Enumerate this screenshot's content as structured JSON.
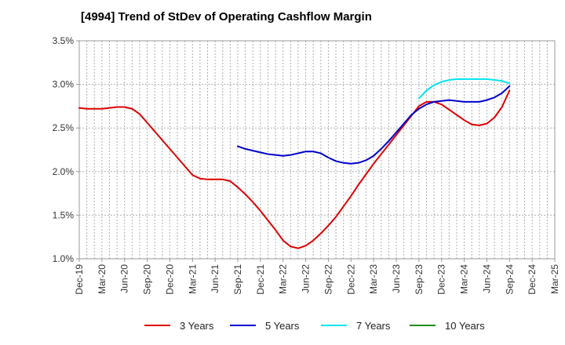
{
  "chart_data": {
    "type": "line",
    "title": "[4994]  Trend of StDev of Operating Cashflow Margin",
    "xlabel": "",
    "ylabel": "",
    "categories": [
      "Dec-19",
      "Mar-20",
      "Jun-20",
      "Sep-20",
      "Dec-20",
      "Mar-21",
      "Jun-21",
      "Sep-21",
      "Dec-21",
      "Mar-22",
      "Jun-22",
      "Sep-22",
      "Dec-22",
      "Mar-23",
      "Jun-23",
      "Sep-23",
      "Dec-23",
      "Mar-24",
      "Jun-24",
      "Sep-24",
      "Dec-24",
      "Mar-25"
    ],
    "y_ticks": [
      "1.0%",
      "1.5%",
      "2.0%",
      "2.5%",
      "3.0%",
      "3.5%"
    ],
    "ylim": [
      1.0,
      3.5
    ],
    "grid": true,
    "legend_position": "bottom",
    "series": [
      {
        "name": "3 Years",
        "color": "#dd0000",
        "points": [
          [
            "Dec-19",
            2.73
          ],
          [
            "Jan-20",
            2.72
          ],
          [
            "Feb-20",
            2.72
          ],
          [
            "Mar-20",
            2.72
          ],
          [
            "Apr-20",
            2.73
          ],
          [
            "May-20",
            2.74
          ],
          [
            "Jun-20",
            2.74
          ],
          [
            "Jul-20",
            2.72
          ],
          [
            "Aug-20",
            2.66
          ],
          [
            "Sep-20",
            2.56
          ],
          [
            "Oct-20",
            2.46
          ],
          [
            "Nov-20",
            2.36
          ],
          [
            "Dec-20",
            2.26
          ],
          [
            "Jan-21",
            2.16
          ],
          [
            "Feb-21",
            2.06
          ],
          [
            "Mar-21",
            1.96
          ],
          [
            "Apr-21",
            1.92
          ],
          [
            "May-21",
            1.91
          ],
          [
            "Jun-21",
            1.91
          ],
          [
            "Jul-21",
            1.91
          ],
          [
            "Aug-21",
            1.89
          ],
          [
            "Sep-21",
            1.82
          ],
          [
            "Oct-21",
            1.74
          ],
          [
            "Nov-21",
            1.65
          ],
          [
            "Dec-21",
            1.55
          ],
          [
            "Jan-22",
            1.44
          ],
          [
            "Feb-22",
            1.33
          ],
          [
            "Mar-22",
            1.21
          ],
          [
            "Apr-22",
            1.14
          ],
          [
            "May-22",
            1.12
          ],
          [
            "Jun-22",
            1.15
          ],
          [
            "Jul-22",
            1.21
          ],
          [
            "Aug-22",
            1.29
          ],
          [
            "Sep-22",
            1.38
          ],
          [
            "Oct-22",
            1.48
          ],
          [
            "Nov-22",
            1.6
          ],
          [
            "Dec-22",
            1.72
          ],
          [
            "Jan-23",
            1.85
          ],
          [
            "Feb-23",
            1.97
          ],
          [
            "Mar-23",
            2.09
          ],
          [
            "Apr-23",
            2.2
          ],
          [
            "May-23",
            2.31
          ],
          [
            "Jun-23",
            2.42
          ],
          [
            "Jul-23",
            2.53
          ],
          [
            "Aug-23",
            2.64
          ],
          [
            "Sep-23",
            2.75
          ],
          [
            "Oct-23",
            2.8
          ],
          [
            "Nov-23",
            2.8
          ],
          [
            "Dec-23",
            2.77
          ],
          [
            "Jan-24",
            2.71
          ],
          [
            "Feb-24",
            2.65
          ],
          [
            "Mar-24",
            2.59
          ],
          [
            "Apr-24",
            2.54
          ],
          [
            "May-24",
            2.53
          ],
          [
            "Jun-24",
            2.55
          ],
          [
            "Jul-24",
            2.62
          ],
          [
            "Aug-24",
            2.74
          ],
          [
            "Sep-24",
            2.93
          ]
        ]
      },
      {
        "name": "5 Years",
        "color": "#0000cc",
        "points": [
          [
            "Sep-21",
            2.29
          ],
          [
            "Oct-21",
            2.26
          ],
          [
            "Nov-21",
            2.24
          ],
          [
            "Dec-21",
            2.22
          ],
          [
            "Jan-22",
            2.2
          ],
          [
            "Feb-22",
            2.19
          ],
          [
            "Mar-22",
            2.18
          ],
          [
            "Apr-22",
            2.19
          ],
          [
            "May-22",
            2.21
          ],
          [
            "Jun-22",
            2.23
          ],
          [
            "Jul-22",
            2.23
          ],
          [
            "Aug-22",
            2.21
          ],
          [
            "Sep-22",
            2.16
          ],
          [
            "Oct-22",
            2.12
          ],
          [
            "Nov-22",
            2.1
          ],
          [
            "Dec-22",
            2.09
          ],
          [
            "Jan-23",
            2.1
          ],
          [
            "Feb-23",
            2.13
          ],
          [
            "Mar-23",
            2.18
          ],
          [
            "Apr-23",
            2.26
          ],
          [
            "May-23",
            2.35
          ],
          [
            "Jun-23",
            2.45
          ],
          [
            "Jul-23",
            2.55
          ],
          [
            "Aug-23",
            2.65
          ],
          [
            "Sep-23",
            2.72
          ],
          [
            "Oct-23",
            2.77
          ],
          [
            "Nov-23",
            2.8
          ],
          [
            "Dec-23",
            2.81
          ],
          [
            "Jan-24",
            2.82
          ],
          [
            "Feb-24",
            2.81
          ],
          [
            "Mar-24",
            2.8
          ],
          [
            "Apr-24",
            2.8
          ],
          [
            "May-24",
            2.8
          ],
          [
            "Jun-24",
            2.82
          ],
          [
            "Jul-24",
            2.85
          ],
          [
            "Aug-24",
            2.9
          ],
          [
            "Sep-24",
            2.98
          ]
        ]
      },
      {
        "name": "7 Years",
        "color": "#00e5ee",
        "points": [
          [
            "Sep-23",
            2.84
          ],
          [
            "Oct-23",
            2.93
          ],
          [
            "Nov-23",
            2.99
          ],
          [
            "Dec-23",
            3.03
          ],
          [
            "Jan-24",
            3.05
          ],
          [
            "Feb-24",
            3.06
          ],
          [
            "Mar-24",
            3.06
          ],
          [
            "Apr-24",
            3.06
          ],
          [
            "May-24",
            3.06
          ],
          [
            "Jun-24",
            3.06
          ],
          [
            "Jul-24",
            3.05
          ],
          [
            "Aug-24",
            3.04
          ],
          [
            "Sep-24",
            3.01
          ]
        ]
      },
      {
        "name": "10 Years",
        "color": "#228b22",
        "points": []
      }
    ]
  }
}
